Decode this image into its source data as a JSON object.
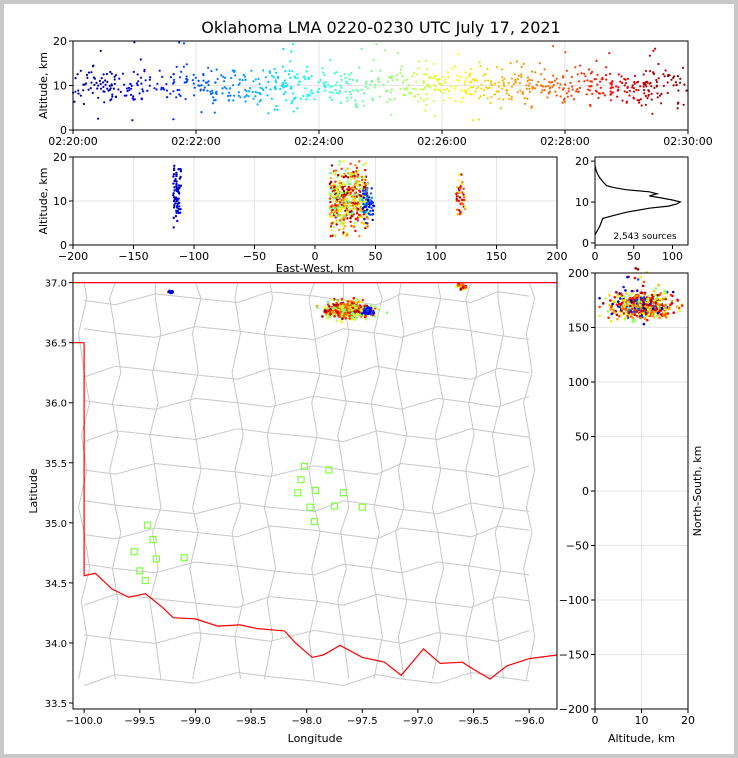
{
  "figure": {
    "title": "Oklahoma LMA 0220-0230 UTC July 17, 2021",
    "source_count_label": "2,543 sources"
  },
  "colors": {
    "state_border": "#ff0000",
    "county_lines": "#c8c8c8",
    "stations": "#80ff40",
    "grid": "#e6e6e6",
    "axes": "#000000",
    "background": "#ffffff"
  },
  "chart_data": [
    {
      "id": "time_height",
      "type": "scatter",
      "xlabel": "",
      "ylabel": "Altitude, km",
      "ylim": [
        0,
        20
      ],
      "yticks": [
        0,
        10,
        20
      ],
      "xticks": [
        "02:20:00",
        "02:22:00",
        "02:24:00",
        "02:26:00",
        "02:28:00",
        "02:30:00"
      ],
      "xlim_minutes": [
        0,
        10
      ],
      "grid": true,
      "colormap": "jet by time",
      "series_note": "points colored from blue (02:20) to dark red (02:30); altitudes mostly 7-14 km",
      "points_summary": {
        "median_altitude_km": 10,
        "spread_km": 2.2,
        "min_km": 2,
        "max_km": 20
      }
    },
    {
      "id": "ew_height",
      "type": "scatter",
      "xlabel": "East-West, km",
      "ylabel": "Altitude, km",
      "xlim": [
        -200,
        200
      ],
      "xticks": [
        -200,
        -150,
        -100,
        -50,
        0,
        50,
        100,
        150,
        200
      ],
      "ylim": [
        0,
        20
      ],
      "yticks": [
        0,
        10,
        20
      ],
      "grid": true,
      "clusters": [
        {
          "x_center": -114,
          "x_width": 4,
          "alt_range": [
            4,
            19
          ],
          "color_phase": "early"
        },
        {
          "x_center": 28,
          "x_width": 20,
          "alt_range": [
            2,
            19
          ],
          "color_phase": "mixed-late"
        },
        {
          "x_center": 44,
          "x_width": 6,
          "alt_range": [
            5,
            13
          ],
          "color_phase": "early-mid"
        },
        {
          "x_center": 120,
          "x_width": 5,
          "alt_range": [
            5,
            16
          ],
          "color_phase": "late"
        }
      ]
    },
    {
      "id": "altitude_histogram",
      "type": "line",
      "xlabel": "",
      "ylabel": "",
      "xlim": [
        0,
        120
      ],
      "xticks": [
        0,
        50,
        100
      ],
      "ylim": [
        0,
        20
      ],
      "yticks": [
        0,
        10,
        20
      ],
      "profile": [
        [
          0,
          2
        ],
        [
          3,
          3
        ],
        [
          6,
          4
        ],
        [
          8,
          5
        ],
        [
          10,
          6
        ],
        [
          20,
          6.5
        ],
        [
          40,
          7.5
        ],
        [
          70,
          8.5
        ],
        [
          95,
          9
        ],
        [
          105,
          9.5
        ],
        [
          110,
          10
        ],
        [
          100,
          10.5
        ],
        [
          85,
          11
        ],
        [
          70,
          11.5
        ],
        [
          80,
          12
        ],
        [
          70,
          12.5
        ],
        [
          40,
          13
        ],
        [
          25,
          13.5
        ],
        [
          15,
          14
        ],
        [
          10,
          15
        ],
        [
          6,
          16
        ],
        [
          3,
          17
        ],
        [
          1,
          18
        ],
        [
          0,
          19
        ]
      ]
    },
    {
      "id": "plan_view",
      "type": "map",
      "xlabel": "Longitude",
      "ylabel": "Latitude",
      "xlim": [
        -100.1,
        -95.75
      ],
      "xticks": [
        "-100.0",
        "-99.5",
        "-99.0",
        "-98.5",
        "-98.0",
        "-97.5",
        "-97.0",
        "-96.5",
        "-96.0"
      ],
      "ylim": [
        33.45,
        37.08
      ],
      "yticks": [
        "33.5",
        "34.0",
        "34.5",
        "35.0",
        "35.5",
        "36.0",
        "36.5",
        "37.0"
      ],
      "stations": [
        [
          -98.02,
          35.47
        ],
        [
          -98.05,
          35.36
        ],
        [
          -98.08,
          35.25
        ],
        [
          -97.92,
          35.27
        ],
        [
          -97.97,
          35.13
        ],
        [
          -97.8,
          35.44
        ],
        [
          -97.67,
          35.25
        ],
        [
          -97.75,
          35.14
        ],
        [
          -97.93,
          35.01
        ],
        [
          -97.5,
          35.13
        ],
        [
          -99.43,
          34.98
        ],
        [
          -99.38,
          34.86
        ],
        [
          -99.55,
          34.76
        ],
        [
          -99.35,
          34.7
        ],
        [
          -99.5,
          34.6
        ],
        [
          -99.45,
          34.52
        ],
        [
          -99.1,
          34.71
        ]
      ],
      "source_regions": [
        {
          "lon_center": -97.63,
          "lat_center": 36.77,
          "lon_width": 0.35,
          "lat_width": 0.12
        },
        {
          "lon_center": -97.45,
          "lat_center": 36.76,
          "lon_width": 0.1,
          "lat_width": 0.06
        },
        {
          "lon_center": -96.6,
          "lat_center": 36.97,
          "lon_width": 0.08,
          "lat_width": 0.05
        },
        {
          "lon_center": -99.22,
          "lat_center": 36.92,
          "lon_width": 0.06,
          "lat_width": 0.02
        }
      ]
    },
    {
      "id": "ns_height",
      "type": "scatter",
      "xlabel": "Altitude, km",
      "ylabel": "North-South, km",
      "xlim": [
        0,
        20
      ],
      "xticks": [
        0,
        10,
        20
      ],
      "ylim": [
        -200,
        200
      ],
      "yticks": [
        -200,
        -150,
        -100,
        -50,
        0,
        50,
        100,
        150,
        200
      ],
      "grid": true,
      "ns_range": [
        155,
        195
      ]
    }
  ]
}
